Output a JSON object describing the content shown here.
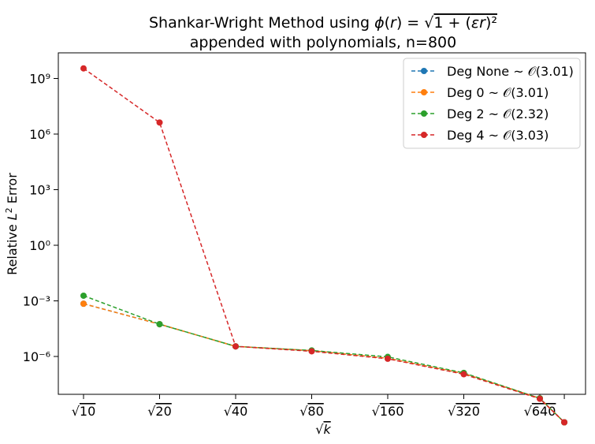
{
  "chart_data": {
    "type": "line",
    "title": "Shankar-Wright Method using ϕ(r) = √(1 + (εr)²)",
    "subtitle": "appended with polynomials, n=800",
    "xlabel": "√k",
    "ylabel": "Relative L² Error",
    "x_scale": "log2",
    "y_scale": "log",
    "categories": [
      "√10",
      "√20",
      "√40",
      "√80",
      "√160",
      "√320",
      "√640"
    ],
    "x": [
      10,
      20,
      40,
      80,
      160,
      320,
      640,
      800
    ],
    "y_ticks": [
      "10⁻⁶",
      "10⁻³",
      "10⁰",
      "10³",
      "10⁶",
      "10⁹"
    ],
    "y_tick_exponents": [
      -6,
      -3,
      0,
      3,
      6,
      9
    ],
    "legend_position": "top-right",
    "grid": false,
    "series": [
      {
        "name": "Deg None ~ 𝒪(3.01)",
        "color": "#1f77b4",
        "values": [
          0.0007,
          5.5e-05,
          3.5e-06,
          2.05e-06,
          8e-07,
          1.2e-07,
          5.5e-09,
          2.8e-10
        ]
      },
      {
        "name": "Deg 0 ~ 𝒪(3.01)",
        "color": "#ff7f0e",
        "values": [
          0.0007,
          5.5e-05,
          3.5e-06,
          2.05e-06,
          8e-07,
          1.2e-07,
          5.5e-09,
          2.8e-10
        ]
      },
      {
        "name": "Deg 2 ~ 𝒪(2.32)",
        "color": "#2ca02c",
        "values": [
          0.0019,
          5.5e-05,
          3.5e-06,
          2.1e-06,
          9.5e-07,
          1.3e-07,
          5.5e-09,
          2.8e-10
        ]
      },
      {
        "name": "Deg 4 ~ 𝒪(3.03)",
        "color": "#d62728",
        "values": [
          3500000000,
          4200000,
          3.5e-06,
          1.9e-06,
          7.5e-07,
          1.1e-07,
          5.2e-09,
          2.8e-10
        ]
      }
    ]
  }
}
